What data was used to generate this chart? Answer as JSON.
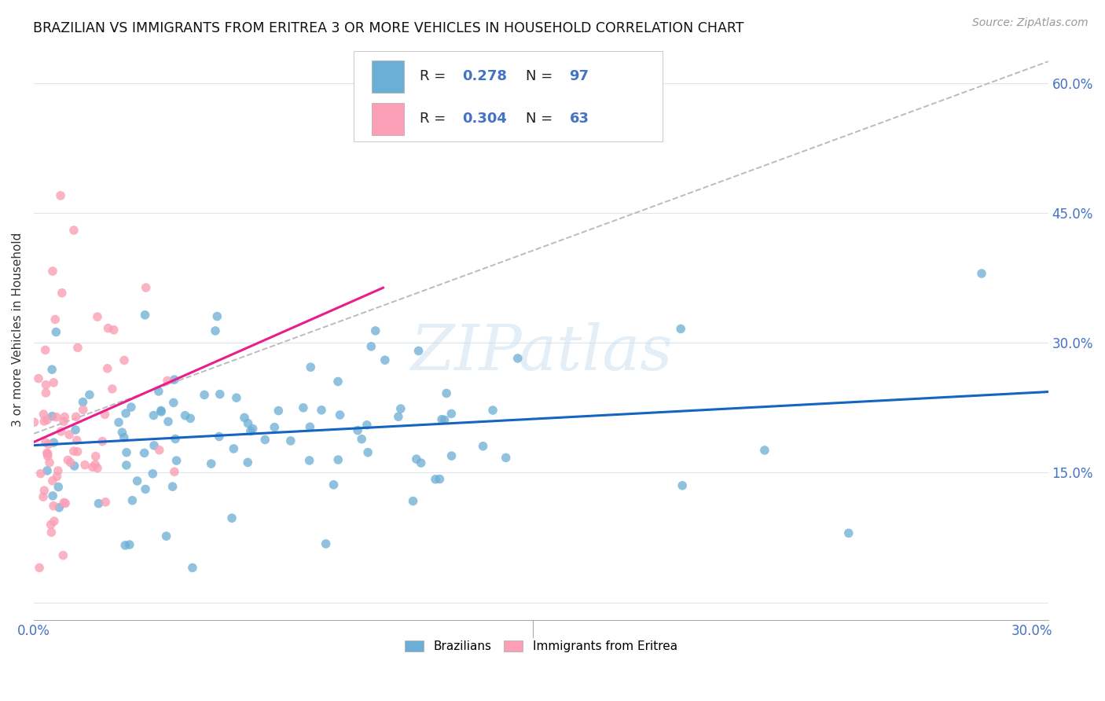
{
  "title": "BRAZILIAN VS IMMIGRANTS FROM ERITREA 3 OR MORE VEHICLES IN HOUSEHOLD CORRELATION CHART",
  "source": "Source: ZipAtlas.com",
  "ylabel": "3 or more Vehicles in Household",
  "xlim": [
    0.0,
    0.305
  ],
  "ylim": [
    -0.02,
    0.65
  ],
  "xticks": [
    0.0,
    0.05,
    0.1,
    0.15,
    0.2,
    0.25,
    0.3
  ],
  "xtick_labels": [
    "0.0%",
    "",
    "",
    "",
    "",
    "",
    "30.0%"
  ],
  "ytick_positions": [
    0.0,
    0.15,
    0.3,
    0.45,
    0.6
  ],
  "ytick_labels_right": [
    "",
    "15.0%",
    "30.0%",
    "45.0%",
    "60.0%"
  ],
  "legend_r1": "R = 0.278",
  "legend_n1": "N = 97",
  "legend_r2": "R = 0.304",
  "legend_n2": "N = 63",
  "blue_color": "#6baed6",
  "pink_color": "#fa9fb5",
  "line_blue": "#1565c0",
  "line_pink": "#e91e8c",
  "dashed_color": "#bbbbbb",
  "watermark": "ZIPatlas"
}
